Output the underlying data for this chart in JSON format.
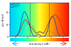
{
  "title": "",
  "xlabel": "local density σ (e/Å²)",
  "ylabel": "p(σ) (Å²/mol)",
  "xlim": [
    -0.025,
    0.025
  ],
  "ylim": [
    0,
    28
  ],
  "vline1": -0.0082,
  "vline2": 0.0082,
  "legend_cellulose": "Cellulose",
  "legend_dmso": "-- DMSO",
  "legend_emimc": "EmimAc",
  "cellulose_color": "#1144bb",
  "dmso_color": "#3399cc",
  "emimc_color": "#cc2200",
  "bg_cmap": [
    [
      0.0,
      "#00ccff"
    ],
    [
      0.2,
      "#00ffdd"
    ],
    [
      0.42,
      "#99ff55"
    ],
    [
      0.5,
      "#ffff33"
    ],
    [
      0.62,
      "#ffcc00"
    ],
    [
      0.78,
      "#ff7700"
    ],
    [
      1.0,
      "#ff1100"
    ]
  ]
}
